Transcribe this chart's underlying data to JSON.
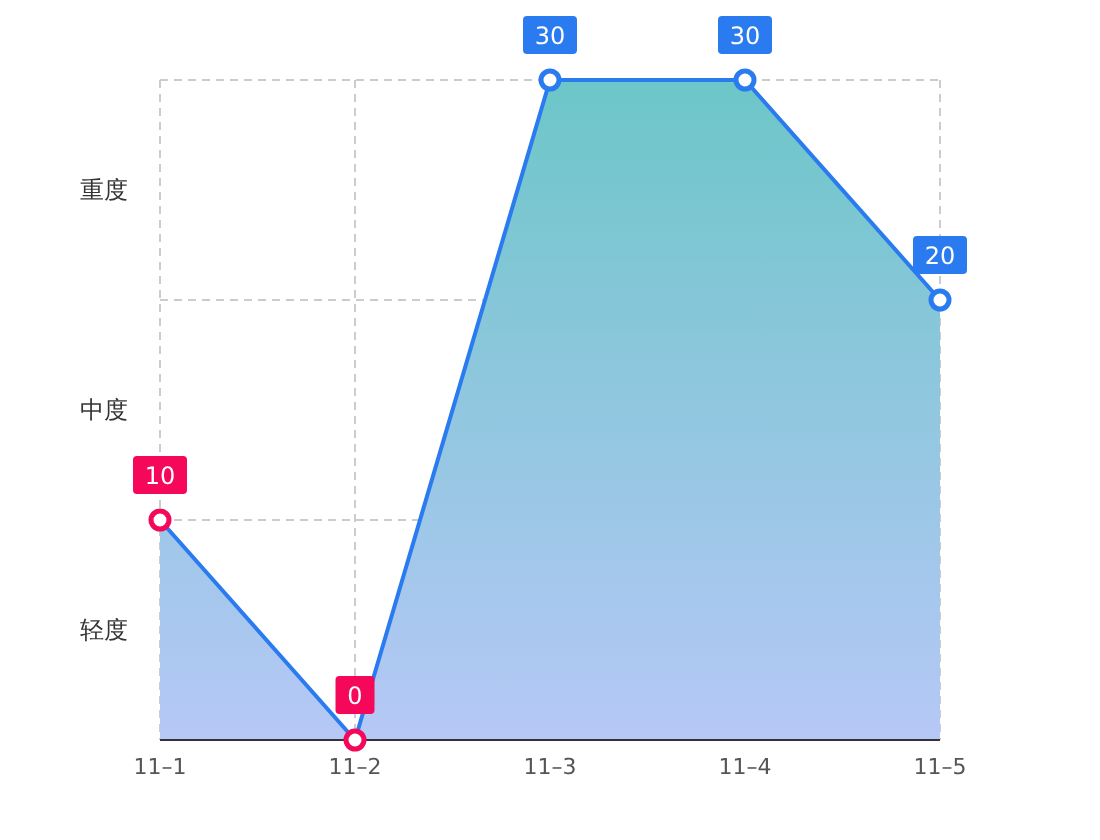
{
  "chart_data": {
    "type": "area",
    "categories": [
      "11–1",
      "11–2",
      "11–3",
      "11–4",
      "11–5"
    ],
    "series": [
      {
        "color": "#2b7bf0",
        "values": [
          10,
          0,
          30,
          30,
          20
        ],
        "colors": [
          "#f5085a",
          "#f5085a",
          "#2b7bf0",
          "#2b7bf0",
          "#2b7bf0"
        ]
      }
    ],
    "ylim": [
      0,
      30
    ],
    "ref_lines": [
      {
        "axis": "y",
        "value": 10,
        "color": "#cccccc",
        "line_style": "dashed"
      },
      {
        "axis": "y",
        "value": 20,
        "color": "#cccccc",
        "line_style": "dashed"
      }
    ],
    "annotations": [
      "轻度",
      "中度",
      "重度"
    ],
    "grid": "x",
    "marker": "circle",
    "data_labels": true
  }
}
